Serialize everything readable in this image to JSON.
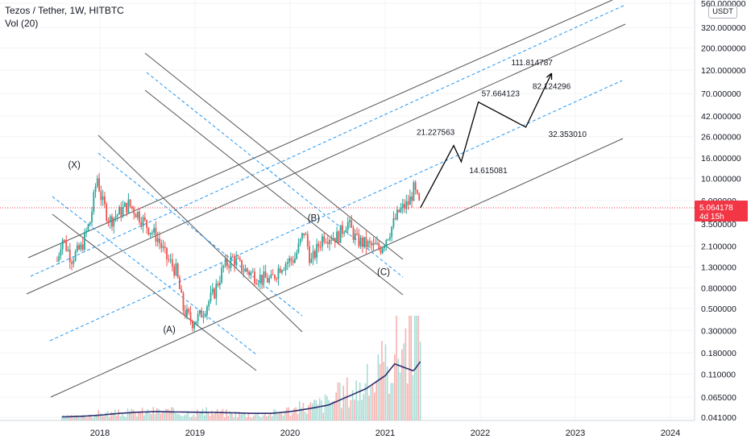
{
  "header": {
    "title": "Tezos / Tether, 1W, HITBTC",
    "indicator": "Vol (20)"
  },
  "currency_button": "USDT",
  "price_badge": {
    "price": "5.064178",
    "countdown": "4d 15h",
    "color": "#f23645"
  },
  "colors": {
    "up": "#26a69a",
    "down": "#ef5350",
    "channel": "#555555",
    "dashed": "#2196f3",
    "ma": "#2a2e6e"
  },
  "chart_data": {
    "type": "candlestick",
    "title": "Tezos / Tether, 1W, HITBTC",
    "scale": "log",
    "y_ticks": [
      0.041,
      0.065,
      0.11,
      0.18,
      0.3,
      0.5,
      0.8,
      1.3,
      2.1,
      3.5,
      6,
      10,
      16,
      26,
      42,
      70,
      120,
      200,
      320,
      560
    ],
    "y_tick_labels": [
      "0.041000",
      "0.065000",
      "0.110000",
      "0.180000",
      "0.300000",
      "0.500000",
      "0.800000",
      "1.300000",
      "2.100000",
      "3.500000",
      "6.000000",
      "10.000000",
      "16.000000",
      "26.000000",
      "42.000000",
      "70.000000",
      "120.000000",
      "200.000000",
      "320.000000",
      "560.000000"
    ],
    "x_ticks": [
      "2018",
      "2019",
      "2020",
      "2021",
      "2022",
      "2023",
      "2024"
    ],
    "price_path": [
      [
        2017.55,
        1.5
      ],
      [
        2017.6,
        2.6
      ],
      [
        2017.7,
        1.6
      ],
      [
        2017.8,
        2.0
      ],
      [
        2017.9,
        3.8
      ],
      [
        2017.97,
        10.5
      ],
      [
        2018.02,
        6.0
      ],
      [
        2018.1,
        3.8
      ],
      [
        2018.2,
        4.5
      ],
      [
        2018.3,
        5.5
      ],
      [
        2018.4,
        4.4
      ],
      [
        2018.5,
        3.3
      ],
      [
        2018.6,
        2.6
      ],
      [
        2018.7,
        1.6
      ],
      [
        2018.8,
        1.2
      ],
      [
        2018.88,
        0.48
      ],
      [
        2018.97,
        0.37
      ],
      [
        2019.05,
        0.42
      ],
      [
        2019.2,
        0.72
      ],
      [
        2019.3,
        1.3
      ],
      [
        2019.4,
        1.6
      ],
      [
        2019.5,
        1.25
      ],
      [
        2019.65,
        1.05
      ],
      [
        2019.8,
        0.95
      ],
      [
        2019.9,
        1.35
      ],
      [
        2020.05,
        1.6
      ],
      [
        2020.15,
        3.0
      ],
      [
        2020.22,
        1.45
      ],
      [
        2020.35,
        2.7
      ],
      [
        2020.5,
        2.6
      ],
      [
        2020.6,
        3.7
      ],
      [
        2020.7,
        2.4
      ],
      [
        2020.85,
        2.1
      ],
      [
        2020.95,
        2.0
      ],
      [
        2021.05,
        3.0
      ],
      [
        2021.15,
        4.7
      ],
      [
        2021.25,
        5.7
      ],
      [
        2021.3,
        7.8
      ],
      [
        2021.37,
        5.06
      ]
    ],
    "projection": [
      [
        2021.37,
        5.06,
        ""
      ],
      [
        2021.72,
        21.227563,
        "21.227563"
      ],
      [
        2021.8,
        14.615081,
        "14.615081"
      ],
      [
        2021.98,
        57.664123,
        "57.664123"
      ],
      [
        2022.48,
        32.35301,
        "32.353010"
      ],
      [
        2022.75,
        111.814787,
        "111.814787"
      ]
    ],
    "projection_note": "82.124296",
    "wave_labels": [
      {
        "text": "(X)",
        "x": 2017.97,
        "y": 10.5
      },
      {
        "text": "(A)",
        "x": 2018.97,
        "y": 0.37
      },
      {
        "text": "(B)",
        "x": 2020.15,
        "y": 3.0
      },
      {
        "text": "(C)",
        "x": 2021.0,
        "y": 1.75
      }
    ],
    "volume": {
      "x": [
        2017.6,
        2017.8,
        2018.0,
        2018.2,
        2018.4,
        2018.6,
        2018.8,
        2019.0,
        2019.2,
        2019.4,
        2019.6,
        2019.8,
        2020.0,
        2020.2,
        2020.4,
        2020.6,
        2020.8,
        2021.0,
        2021.1,
        2021.2,
        2021.3,
        2021.37
      ],
      "values": [
        0.03,
        0.03,
        0.06,
        0.06,
        0.07,
        0.08,
        0.07,
        0.07,
        0.07,
        0.06,
        0.05,
        0.06,
        0.09,
        0.12,
        0.16,
        0.25,
        0.3,
        0.45,
        0.6,
        0.7,
        0.8,
        0.8
      ],
      "ma": [
        0.03,
        0.035,
        0.045,
        0.06,
        0.07,
        0.075,
        0.072,
        0.07,
        0.068,
        0.065,
        0.06,
        0.06,
        0.075,
        0.1,
        0.13,
        0.2,
        0.27,
        0.38,
        0.48,
        0.45,
        0.42,
        0.5
      ]
    }
  }
}
